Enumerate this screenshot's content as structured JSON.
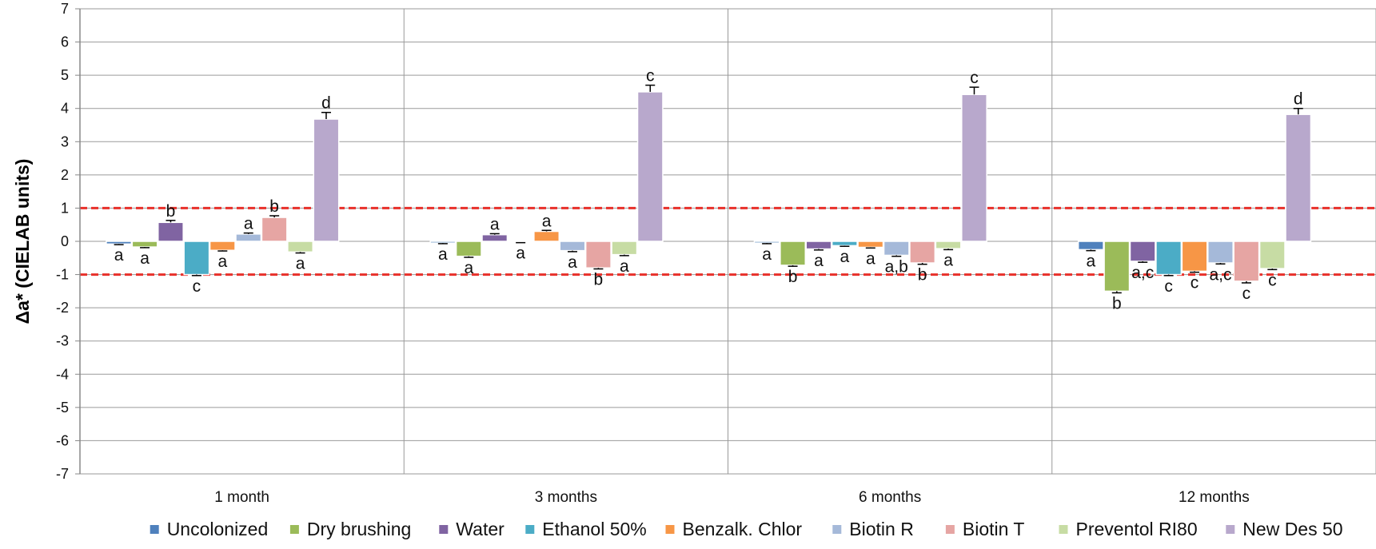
{
  "chart_data": {
    "type": "bar",
    "ylabel": "Δa* (CIELAB units)",
    "xlabel": "",
    "ylim": [
      -7,
      7
    ],
    "yticks": [
      "7",
      "6",
      "5",
      "4",
      "3",
      "2",
      "1",
      "0",
      "-1",
      "-2",
      "-3",
      "-4",
      "-5",
      "-6",
      "-7"
    ],
    "ytick_values": [
      7,
      6,
      5,
      4,
      3,
      2,
      1,
      0,
      -1,
      -2,
      -3,
      -4,
      -5,
      -6,
      -7
    ],
    "grid": true,
    "reference_lines": [
      1,
      -1
    ],
    "reference_line_color": "#e8302a",
    "legend_position": "bottom",
    "categories": [
      "1 month",
      "3 months",
      "6 months",
      "12 months"
    ],
    "series": [
      {
        "name": "Uncolonized",
        "color": "#4f81bd",
        "values": [
          -0.08,
          -0.05,
          -0.05,
          -0.25
        ],
        "errors": [
          0.02,
          0.02,
          0.02,
          0.03
        ],
        "labels": [
          "a",
          "a",
          "a",
          "a"
        ]
      },
      {
        "name": "Dry brushing",
        "color": "#9bbb59",
        "values": [
          -0.17,
          -0.45,
          -0.72,
          -1.5
        ],
        "errors": [
          0.02,
          0.03,
          0.03,
          0.05
        ],
        "labels": [
          "a",
          "a",
          "b",
          "b"
        ]
      },
      {
        "name": "Water",
        "color": "#8064a2",
        "values": [
          0.57,
          0.2,
          -0.23,
          -0.6
        ],
        "errors": [
          0.06,
          0.03,
          0.03,
          0.03
        ],
        "labels": [
          "b",
          "a",
          "a",
          "a,c"
        ]
      },
      {
        "name": "Ethanol 50%",
        "color": "#4bacc6",
        "values": [
          -1.0,
          -0.03,
          -0.13,
          -1.0
        ],
        "errors": [
          0.03,
          0.01,
          0.02,
          0.03
        ],
        "labels": [
          "c",
          "a",
          "a",
          "c"
        ]
      },
      {
        "name": "Benzalk. Chlor",
        "color": "#f79646",
        "values": [
          -0.27,
          0.3,
          -0.18,
          -0.9
        ],
        "errors": [
          0.02,
          0.03,
          0.02,
          0.03
        ],
        "labels": [
          "a",
          "a",
          "a",
          "c"
        ]
      },
      {
        "name": "Biotin R",
        "color": "#a5b9d9",
        "values": [
          0.22,
          -0.28,
          -0.42,
          -0.65
        ],
        "errors": [
          0.03,
          0.03,
          0.03,
          0.03
        ],
        "labels": [
          "a",
          "a",
          "a,b",
          "a,c"
        ]
      },
      {
        "name": "Biotin T",
        "color": "#e6a5a3",
        "values": [
          0.72,
          -0.8,
          -0.65,
          -1.2
        ],
        "errors": [
          0.05,
          0.03,
          0.04,
          0.05
        ],
        "labels": [
          "b",
          "b",
          "b",
          "c"
        ]
      },
      {
        "name": "Preventol RI80",
        "color": "#c7dca4",
        "values": [
          -0.32,
          -0.4,
          -0.22,
          -0.82
        ],
        "errors": [
          0.03,
          0.03,
          0.03,
          0.03
        ],
        "labels": [
          "a",
          "a",
          "a",
          "c"
        ]
      },
      {
        "name": "New Des 50",
        "color": "#b8a8cc",
        "values": [
          3.68,
          4.5,
          4.42,
          3.82
        ],
        "errors": [
          0.2,
          0.2,
          0.22,
          0.18
        ],
        "labels": [
          "d",
          "c",
          "c",
          "d"
        ]
      }
    ]
  }
}
